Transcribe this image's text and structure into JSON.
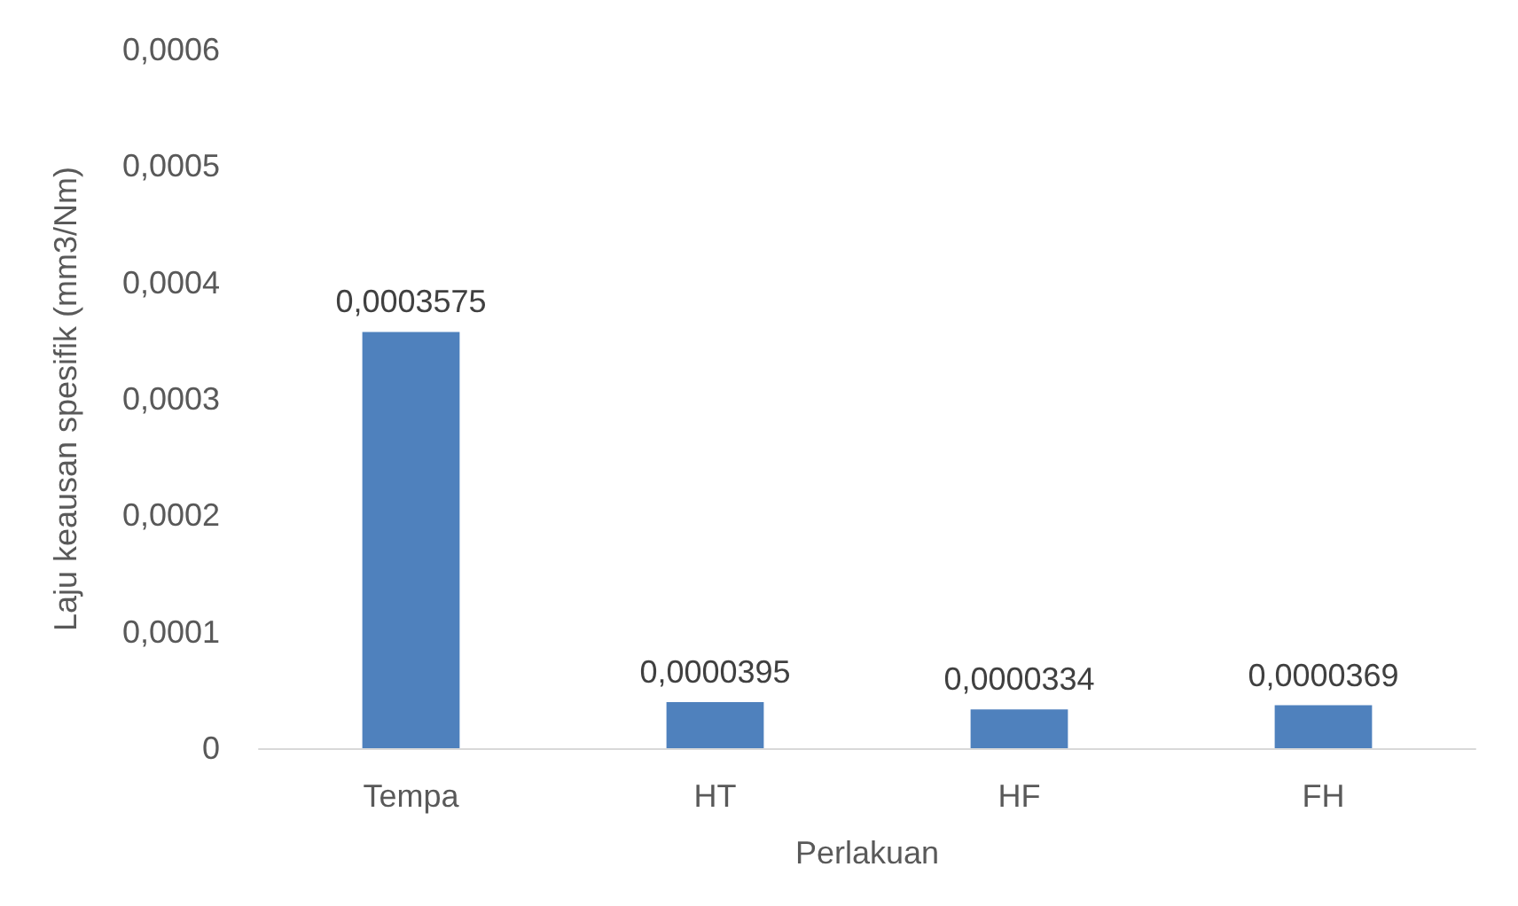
{
  "chart_data": {
    "type": "bar",
    "xlabel": "Perlakuan",
    "ylabel": "Laju keausan spesifik (mm3/Nm)",
    "categories": [
      "Tempa",
      "HT",
      "HF",
      "FH"
    ],
    "values": [
      0.0003575,
      3.95e-05,
      3.34e-05,
      3.69e-05
    ],
    "value_labels": [
      "0,0003575",
      "0,0000395",
      "0,0000334",
      "0,0000369"
    ],
    "color": "#4f81bd",
    "ylim": [
      0,
      0.0006
    ],
    "yticks": [
      0,
      {
        "value": 0.0001,
        "label": "0,0001"
      },
      {
        "value": 0.0002,
        "label": "0,0002"
      },
      {
        "value": 0.0003,
        "label": "0,0003"
      },
      {
        "value": 0.0004,
        "label": "0,0004"
      },
      {
        "value": 0.0005,
        "label": "0,0005"
      },
      {
        "value": 0.0006,
        "label": "0,0006"
      }
    ],
    "grid": false
  }
}
